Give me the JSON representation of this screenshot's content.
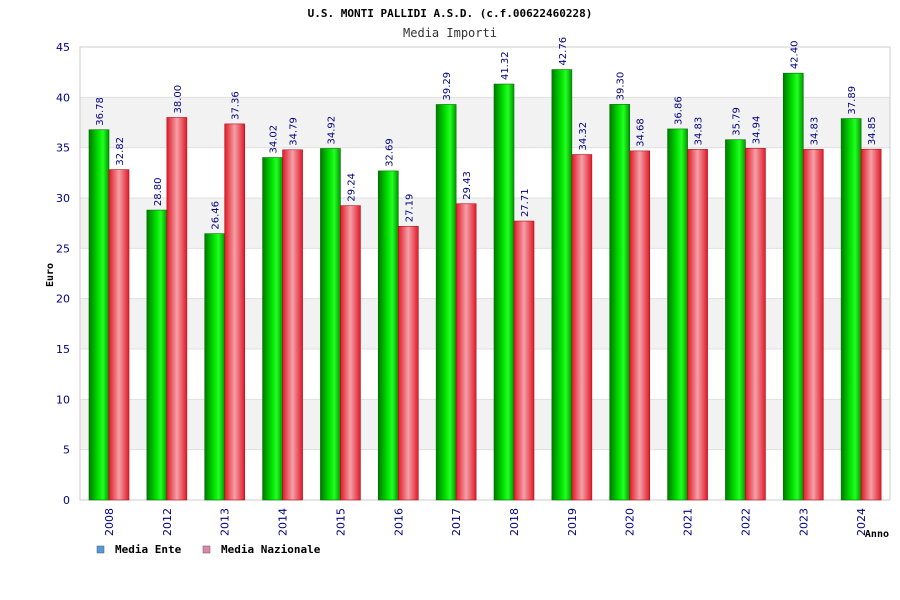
{
  "chart_data": {
    "type": "bar",
    "title": "U.S. MONTI PALLIDI A.S.D. (c.f.00622460228)",
    "subtitle": "Media Importi",
    "ylabel": "Euro",
    "xlabel": "Anno",
    "ylim": [
      0,
      45
    ],
    "yticks": [
      0,
      5,
      10,
      15,
      20,
      25,
      30,
      35,
      40,
      45
    ],
    "categories": [
      "2008",
      "2012",
      "2013",
      "2014",
      "2015",
      "2016",
      "2017",
      "2018",
      "2019",
      "2020",
      "2021",
      "2022",
      "2023",
      "2024"
    ],
    "series": [
      {
        "name": "Media Ente",
        "color": "#00b400",
        "legend_color": "#5599dd",
        "values": [
          36.78,
          28.8,
          26.46,
          34.02,
          34.92,
          32.69,
          39.29,
          41.32,
          42.76,
          39.3,
          36.86,
          35.79,
          42.4,
          37.89
        ],
        "labels": [
          "36.78",
          "28.80",
          "26.46",
          "34.02",
          "34.92",
          "32.69",
          "39.29",
          "41.32",
          "42.76",
          "39.30",
          "36.86",
          "35.79",
          "42.40",
          "37.89"
        ]
      },
      {
        "name": "Media Nazionale",
        "color": "#e8202c",
        "legend_color": "#dd88aa",
        "values": [
          32.82,
          38.0,
          37.36,
          34.79,
          29.24,
          27.19,
          29.43,
          27.71,
          34.32,
          34.68,
          34.83,
          34.94,
          34.83,
          34.85
        ],
        "labels": [
          "32.82",
          "38.00",
          "37.36",
          "34.79",
          "29.24",
          "27.19",
          "29.43",
          "27.71",
          "34.32",
          "34.68",
          "34.83",
          "34.94",
          "34.83",
          "34.85"
        ]
      }
    ],
    "grid": true,
    "legend_position": "bottom-left"
  }
}
